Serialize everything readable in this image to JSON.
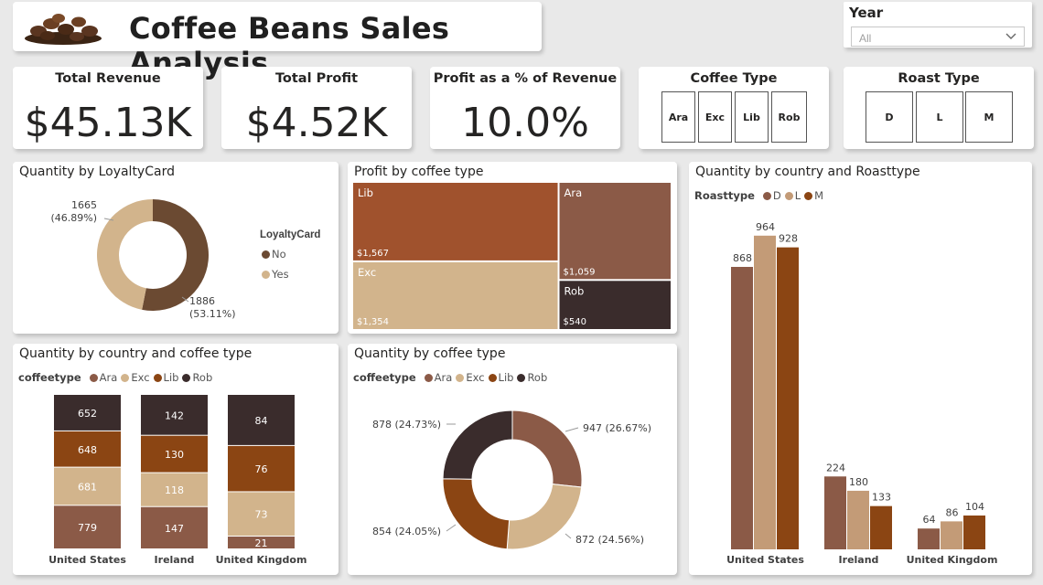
{
  "header": {
    "title": "Coffee Beans Sales Analysis"
  },
  "filters": {
    "year": {
      "label": "Year",
      "value": "All"
    },
    "coffee_type": {
      "title": "Coffee Type",
      "options": [
        "Ara",
        "Exc",
        "Lib",
        "Rob"
      ]
    },
    "roast_type": {
      "title": "Roast Type",
      "options": [
        "D",
        "L",
        "M"
      ]
    }
  },
  "kpis": {
    "total_revenue": {
      "label": "Total Revenue",
      "value": "$45.13K"
    },
    "total_profit": {
      "label": "Total Profit",
      "value": "$4.52K"
    },
    "profit_pct": {
      "label": "Profit as a % of Revenue",
      "value": "10.0%"
    }
  },
  "colors": {
    "Ara": "#8B5A47",
    "Exc": "#D2B48C",
    "Lib": "#8B4513",
    "Rob": "#3A2C2C",
    "D": "#8B5A47",
    "L": "#C39B77",
    "M": "#8B4513",
    "No": "#6B4A32",
    "Yes": "#D2B48C"
  },
  "chart_data": [
    {
      "id": "loyalty",
      "type": "pie",
      "title": "Quantity by LoyaltyCard",
      "legend_title": "LoyaltyCard",
      "categories": [
        "No",
        "Yes"
      ],
      "values": [
        1886,
        1665
      ],
      "labels": [
        "1886",
        "1665"
      ],
      "percent_labels": [
        "(53.11%)",
        "(46.89%)"
      ],
      "donut": true
    },
    {
      "id": "profit_treemap",
      "type": "treemap",
      "title": "Profit by coffee type",
      "categories": [
        "Lib",
        "Exc",
        "Ara",
        "Rob"
      ],
      "values": [
        1567,
        1354,
        1059,
        540
      ],
      "labels": [
        "$1,567",
        "$1,354",
        "$1,059",
        "$540"
      ]
    },
    {
      "id": "country_roast",
      "type": "bar",
      "title": "Quantity by country and Roasttype",
      "legend_title": "Roasttype",
      "categories": [
        "United States",
        "Ireland",
        "United Kingdom"
      ],
      "series": [
        {
          "name": "D",
          "values": [
            868,
            224,
            64
          ]
        },
        {
          "name": "L",
          "values": [
            964,
            180,
            86
          ]
        },
        {
          "name": "M",
          "values": [
            928,
            133,
            104
          ]
        }
      ],
      "ylim": [
        0,
        1000
      ]
    },
    {
      "id": "country_coffee",
      "type": "bar",
      "stacked": true,
      "percent": true,
      "title": "Quantity by country and coffee type",
      "legend_title": "coffeetype",
      "categories": [
        "United States",
        "Ireland",
        "United Kingdom"
      ],
      "series": [
        {
          "name": "Ara",
          "values": [
            779,
            147,
            21
          ]
        },
        {
          "name": "Exc",
          "values": [
            681,
            118,
            73
          ]
        },
        {
          "name": "Lib",
          "values": [
            648,
            130,
            76
          ]
        },
        {
          "name": "Rob",
          "values": [
            652,
            142,
            84
          ]
        }
      ]
    },
    {
      "id": "coffee_donut",
      "type": "pie",
      "title": "Quantity by coffee type",
      "legend_title": "coffeetype",
      "categories": [
        "Ara",
        "Exc",
        "Lib",
        "Rob"
      ],
      "values": [
        947,
        872,
        854,
        878
      ],
      "labels": [
        "947 (26.67%)",
        "872 (24.56%)",
        "854 (24.05%)",
        "878 (24.73%)"
      ],
      "donut": true
    }
  ]
}
